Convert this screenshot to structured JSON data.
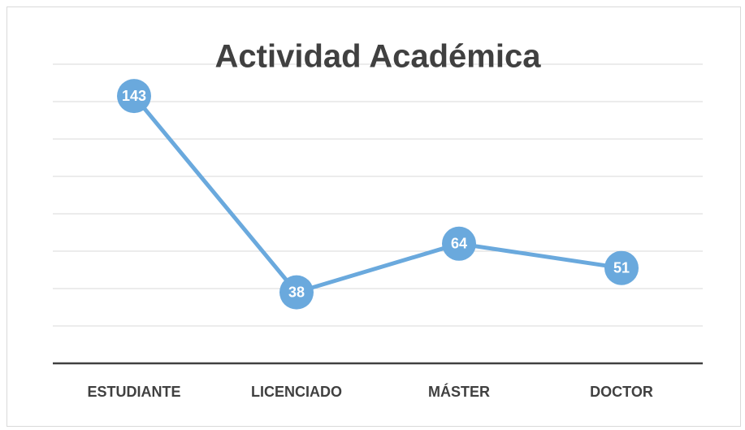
{
  "chart_data": {
    "type": "line",
    "title": "Actividad Académica",
    "categories": [
      "ESTUDIANTE",
      "LICENCIADO",
      "MÁSTER",
      "DOCTOR"
    ],
    "values": [
      143,
      38,
      64,
      51
    ],
    "color": "#6aa9dd",
    "ylim": [
      0,
      160
    ],
    "yticks": [
      0,
      20,
      40,
      60,
      80,
      100,
      120,
      140,
      160
    ],
    "grid": true
  }
}
